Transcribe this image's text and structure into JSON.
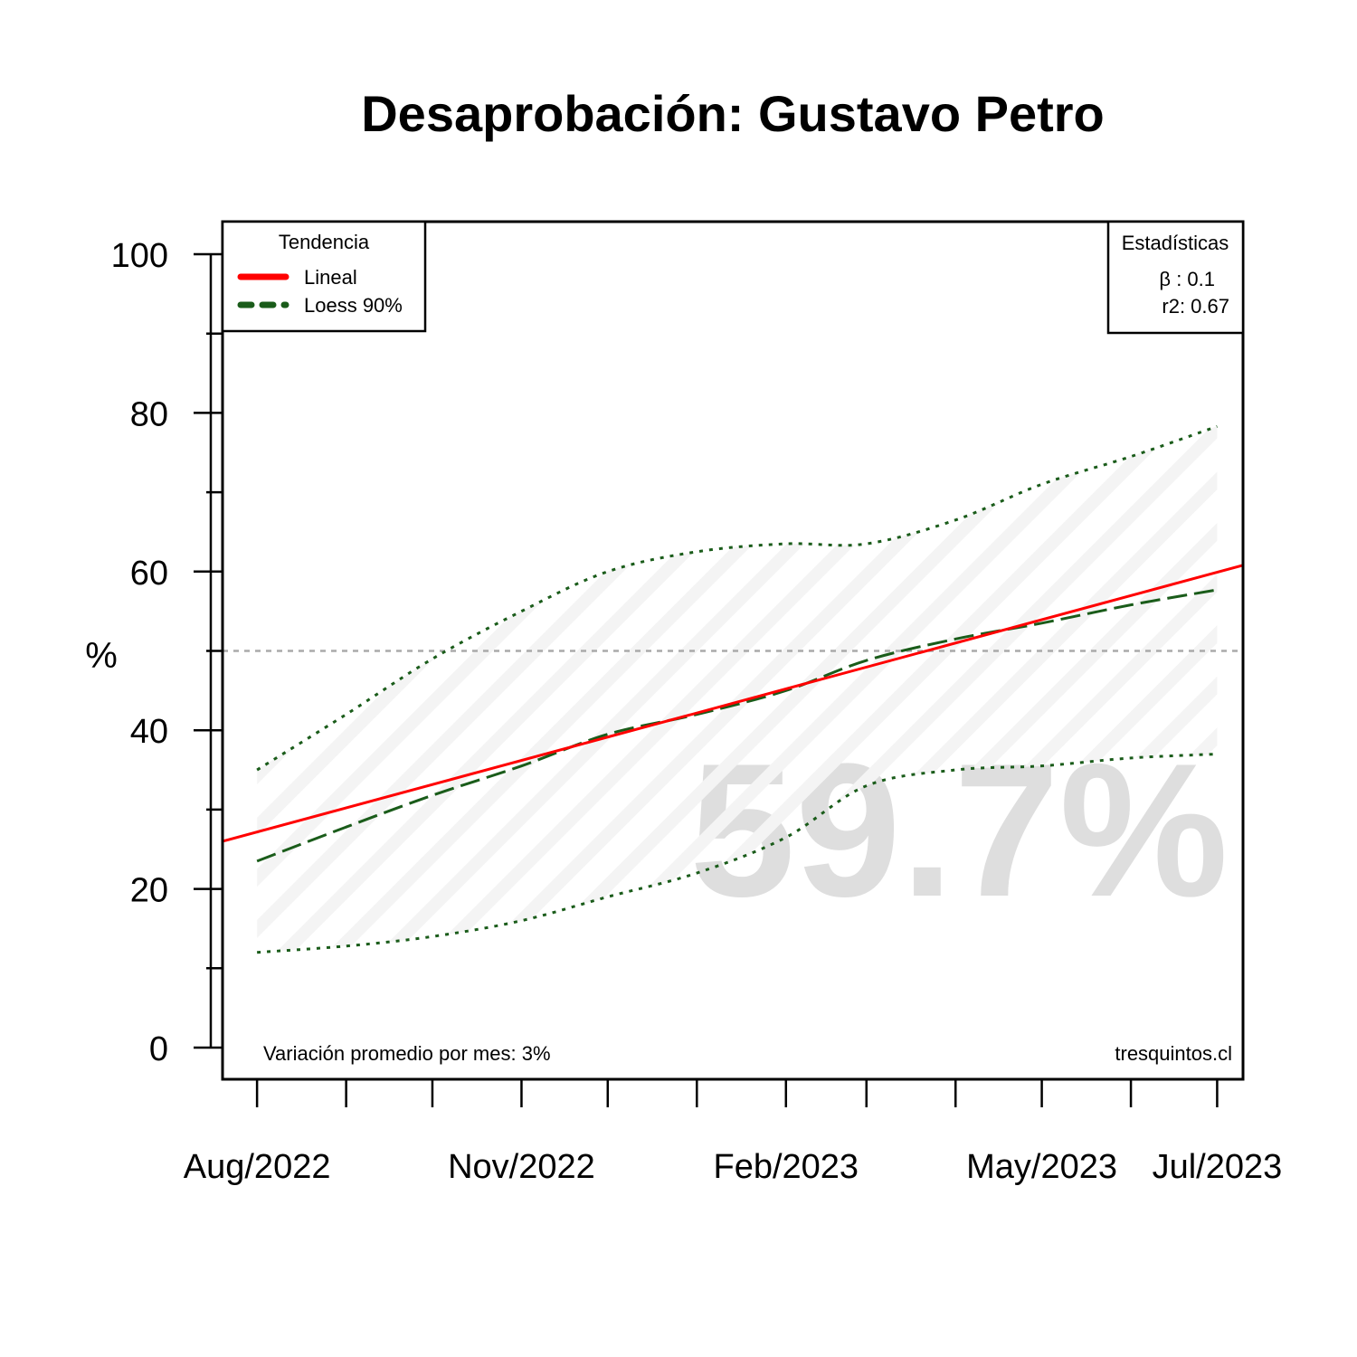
{
  "chart_data": {
    "type": "line",
    "title": "Desaprobación: Gustavo Petro",
    "ylabel": "%",
    "ylim": [
      0,
      100
    ],
    "y_ticks": [
      0,
      20,
      40,
      60,
      80,
      100
    ],
    "x_ticks": [
      "Aug/2022",
      "Nov/2022",
      "Feb/2023",
      "May/2023",
      "Jul/2023"
    ],
    "reference_line": 50,
    "highlight_value": "59.7%",
    "legend": {
      "title": "Tendencia",
      "items": [
        "Lineal",
        "Loess 90%"
      ]
    },
    "stats": {
      "title": "Estadísticas",
      "beta": "β : 0.1",
      "r2": "r2: 0.67"
    },
    "footer_left": "Variación promedio por mes: 3%",
    "footer_right": "tresquintos.cl",
    "series": [
      {
        "name": "Lineal",
        "x": [
          "2022-07-20",
          "2023-07-10"
        ],
        "y": [
          26.0,
          60.8
        ]
      },
      {
        "name": "Loess 90%",
        "x": [
          "2022-08-01",
          "2022-09-01",
          "2022-10-01",
          "2022-11-01",
          "2022-12-01",
          "2023-01-01",
          "2023-02-01",
          "2023-03-01",
          "2023-04-01",
          "2023-05-01",
          "2023-06-01",
          "2023-07-01"
        ],
        "y": [
          23.5,
          27.8,
          31.8,
          35.5,
          39.5,
          42.0,
          45.0,
          48.8,
          51.5,
          53.5,
          55.8,
          57.7
        ]
      },
      {
        "name": "",
        "x": [
          "2022-08-01",
          "2022-09-01",
          "2022-10-01",
          "2022-11-01",
          "2022-12-01",
          "2023-01-01",
          "2023-02-01",
          "2023-03-01",
          "2023-04-01",
          "2023-05-01",
          "2023-06-01",
          "2023-07-01"
        ],
        "y": [
          35.0,
          42.0,
          49.0,
          55.0,
          60.0,
          62.5,
          63.5,
          63.5,
          66.5,
          71.0,
          74.5,
          78.3
        ]
      },
      {
        "name": "",
        "x": [
          "2022-08-01",
          "2022-09-01",
          "2022-10-01",
          "2022-11-01",
          "2022-12-01",
          "2023-01-01",
          "2023-02-01",
          "2023-03-01",
          "2023-04-01",
          "2023-05-01",
          "2023-06-01",
          "2023-07-01"
        ],
        "y": [
          12.0,
          12.8,
          14.0,
          16.0,
          19.0,
          22.0,
          26.5,
          33.0,
          35.0,
          35.5,
          36.5,
          37.0
        ]
      }
    ],
    "colors": {
      "linear": "#ff0000",
      "loess": "#1a5c1a",
      "reference": "#aaaaaa",
      "watermark": "#dedede"
    }
  }
}
